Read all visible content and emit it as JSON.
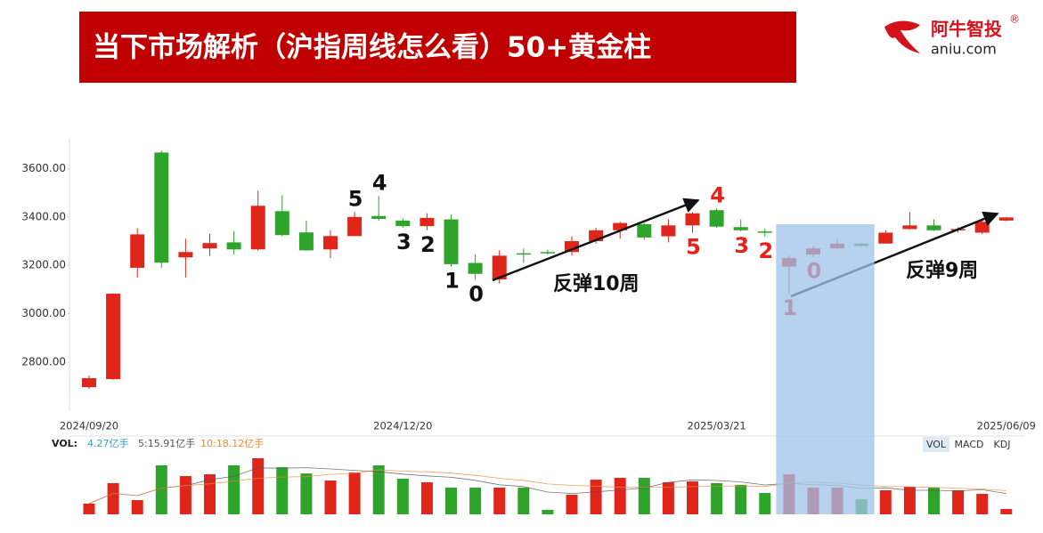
{
  "header": {
    "title": "当下市场解析（沪指周线怎么看）50+黄金柱",
    "logo": "阿牛智投",
    "registered": "®",
    "site": "aniu.com"
  },
  "chart_data": {
    "type": "candlestick",
    "categories": [
      "2024/09/20",
      null,
      null,
      null,
      null,
      null,
      null,
      null,
      null,
      null,
      null,
      null,
      null,
      "2024/12/20",
      null,
      null,
      null,
      null,
      null,
      null,
      null,
      null,
      null,
      null,
      null,
      null,
      "2025/03/21",
      null,
      null,
      null,
      null,
      null,
      null,
      null,
      null,
      null,
      null,
      null,
      "2025/06/09"
    ],
    "open": [
      2697,
      2730,
      3190,
      3666,
      3233,
      3270,
      3295,
      3266,
      3424,
      3336,
      3266,
      3321,
      3404,
      3385,
      3362,
      3390,
      3210,
      3142,
      3250,
      3255,
      3255,
      3300,
      3345,
      3370,
      3320,
      3365,
      3428,
      3358,
      3340,
      3195,
      3245,
      3270,
      3290,
      3290,
      3350,
      3365,
      3345,
      3335,
      3385
    ],
    "close": [
      2734,
      3083,
      3328,
      3211,
      3255,
      3292,
      3266,
      3446,
      3325,
      3262,
      3321,
      3400,
      3392,
      3362,
      3396,
      3205,
      3165,
      3240,
      3245,
      3250,
      3300,
      3345,
      3375,
      3315,
      3365,
      3415,
      3360,
      3345,
      3337,
      3230,
      3270,
      3290,
      3280,
      3335,
      3365,
      3345,
      3350,
      3380,
      3398
    ],
    "high": [
      2745,
      3085,
      3354,
      3674,
      3310,
      3330,
      3340,
      3508,
      3490,
      3385,
      3345,
      3420,
      3486,
      3395,
      3415,
      3410,
      3245,
      3262,
      3270,
      3265,
      3320,
      3355,
      3380,
      3375,
      3390,
      3420,
      3435,
      3390,
      3352,
      3242,
      3280,
      3310,
      3292,
      3345,
      3420,
      3390,
      3358,
      3395,
      3400
    ],
    "low": [
      2690,
      2728,
      3149,
      3190,
      3150,
      3240,
      3245,
      3260,
      3320,
      3260,
      3230,
      3320,
      3385,
      3355,
      3345,
      3195,
      3140,
      3125,
      3210,
      3245,
      3240,
      3290,
      3310,
      3305,
      3295,
      3335,
      3355,
      3340,
      3318,
      3083,
      3235,
      3265,
      3278,
      3290,
      3348,
      3342,
      3335,
      3330,
      3382
    ],
    "up_color": "#e0261a",
    "down_color": "#2ea52a",
    "ylim": [
      2600,
      3730
    ],
    "yticks": [
      {
        "value": 2800,
        "label": "2800.00"
      },
      {
        "value": 3000,
        "label": "3000.00"
      },
      {
        "value": 3200,
        "label": "3200.00"
      },
      {
        "value": 3400,
        "label": "3400.00"
      },
      {
        "value": 3600,
        "label": "3600.00"
      }
    ],
    "annotations": [
      {
        "text": "5",
        "index": 11,
        "color": "#111111"
      },
      {
        "text": "4",
        "index": 12,
        "color": "#111111"
      },
      {
        "text": "3",
        "index": 13,
        "color": "#111111"
      },
      {
        "text": "2",
        "index": 14,
        "color": "#111111"
      },
      {
        "text": "1",
        "index": 15,
        "color": "#111111"
      },
      {
        "text": "0",
        "index": 16,
        "color": "#111111"
      },
      {
        "text": "5",
        "index": 25,
        "color": "#e8201a"
      },
      {
        "text": "4",
        "index": 26,
        "color": "#e8201a"
      },
      {
        "text": "3",
        "index": 27,
        "color": "#e8201a"
      },
      {
        "text": "2",
        "index": 28,
        "color": "#e8201a"
      },
      {
        "text": "1",
        "index": 29,
        "color": "#e8201a"
      },
      {
        "text": "0",
        "index": 30,
        "color": "#e8201a"
      }
    ],
    "rebounds": [
      "反弹10周",
      "反弹9周"
    ],
    "highlight": {
      "from": 29,
      "to": 32,
      "color": "#9fc3ea"
    },
    "volume": {
      "label": "VOL:",
      "legend": [
        "4.27亿手",
        "5:15.91亿手",
        "10:18.12亿手"
      ],
      "legend_colors": [
        "#2f9fd8",
        "#555555",
        "#f0883a"
      ],
      "values": [
        8.6,
        25,
        11.4,
        39.3,
        30.7,
        32.1,
        39.3,
        45,
        37.8,
        32.8,
        27.1,
        33.6,
        39.3,
        28.6,
        25.7,
        21.4,
        21.4,
        21.4,
        21.4,
        3.6,
        15.7,
        27.8,
        29.3,
        29.3,
        25.7,
        26.4,
        25,
        23.6,
        17.1,
        32.1,
        21.4,
        21.4,
        12.1,
        19.3,
        22.1,
        21.4,
        19.3,
        16.4,
        4.27
      ],
      "ylim": [
        0,
        50
      ]
    },
    "tabs": [
      "VOL",
      "MACD",
      "KDJ"
    ],
    "active_tab": "VOL"
  }
}
